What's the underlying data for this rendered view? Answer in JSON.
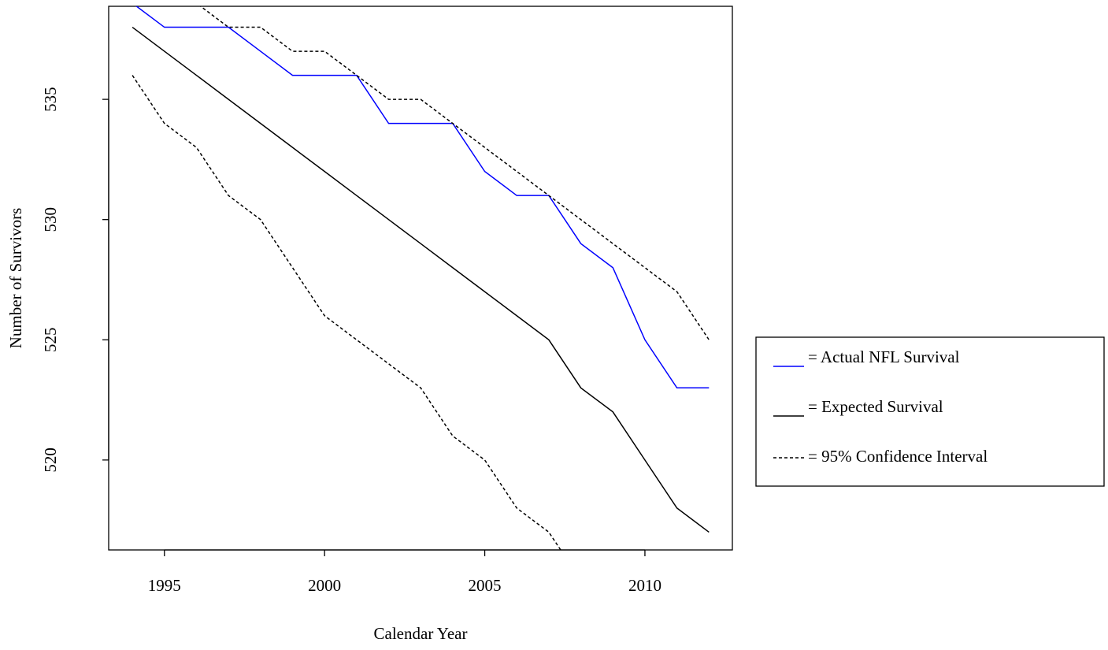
{
  "chart_data": {
    "type": "line",
    "xlabel": "Calendar Year",
    "ylabel": "Number of Survivors",
    "x": [
      1994,
      1995,
      1996,
      1997,
      1998,
      1999,
      2000,
      2001,
      2002,
      2003,
      2004,
      2005,
      2006,
      2007,
      2008,
      2009,
      2010,
      2011,
      2012
    ],
    "series": [
      {
        "name": "= Actual NFL Survival",
        "color": "#0000ff",
        "dash": "none",
        "values": [
          539,
          538,
          538,
          538,
          537,
          536,
          536,
          536,
          534,
          534,
          534,
          532,
          531,
          531,
          529,
          528,
          525,
          523,
          523
        ]
      },
      {
        "name": "= Expected Survival",
        "color": "#000000",
        "dash": "none",
        "values": [
          538,
          537,
          536,
          535,
          534,
          533,
          532,
          531,
          530,
          529,
          528,
          527,
          526,
          525,
          523,
          522,
          520,
          518,
          517
        ]
      }
    ],
    "interval": {
      "name": "= 95% Confidence Interval",
      "color": "#000000",
      "dash": "4 3",
      "upper": [
        541,
        540,
        539,
        538,
        538,
        537,
        537,
        536,
        535,
        535,
        534,
        533,
        532,
        531,
        530,
        529,
        528,
        527,
        525
      ],
      "lower": [
        536,
        534,
        533,
        531,
        530,
        528,
        526,
        525,
        524,
        523,
        521,
        520,
        518,
        517,
        515,
        null,
        null,
        null,
        null
      ]
    },
    "xlim": [
      1993.26,
      2012.73
    ],
    "ylim": [
      516.26,
      538.87
    ],
    "xticks": [
      1995,
      2000,
      2005,
      2010
    ],
    "yticks": [
      520,
      525,
      530,
      535
    ],
    "legend": "right"
  }
}
